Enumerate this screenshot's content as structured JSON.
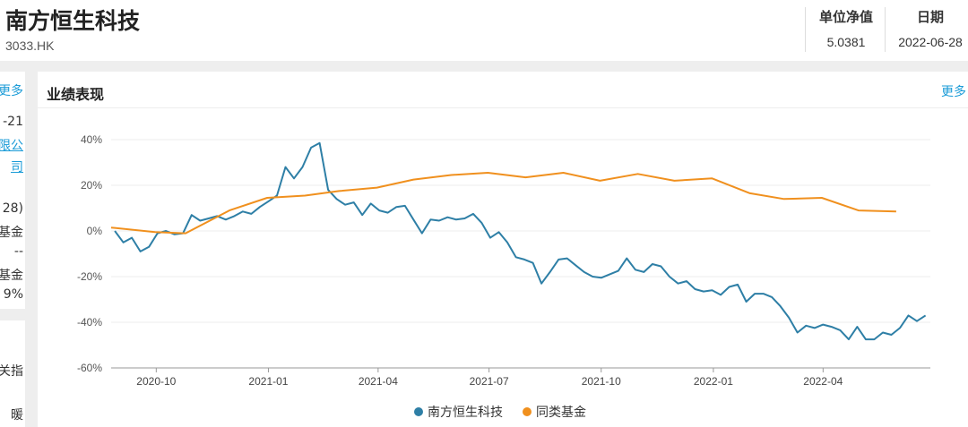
{
  "fund": {
    "name": "南方恒生科技",
    "code": "3033.HK"
  },
  "metrics": [
    {
      "label": "单位净值",
      "value": "5.0381"
    },
    {
      "label": "日期",
      "value": "2022-06-28"
    }
  ],
  "left_panel": {
    "more": "更多",
    "lines": [
      "-21",
      "限公",
      "司",
      "28)",
      "基金",
      "--",
      "基金",
      "9%"
    ],
    "lines2": [
      "关指",
      "暖"
    ]
  },
  "panel": {
    "title": "业绩表现",
    "more": "更多"
  },
  "colors": {
    "series1": "#2e7fa6",
    "series2": "#f0901e",
    "link": "#1a9bd7"
  },
  "chart_data": {
    "type": "line",
    "title": "",
    "xlabel": "",
    "ylabel": "",
    "ylim": [
      -60,
      40
    ],
    "xlim": [
      "2020-08-25",
      "2022-06-28"
    ],
    "yticks": [
      "40%",
      "20%",
      "0%",
      "-20%",
      "-40%",
      "-60%"
    ],
    "yticks_values": [
      40,
      20,
      0,
      -20,
      -40,
      -60
    ],
    "xticks": [
      "2020-10",
      "2021-01",
      "2021-04",
      "2021-07",
      "2021-10",
      "2022-01",
      "2022-04"
    ],
    "xticks_dates": [
      "2020-10-01",
      "2021-01-01",
      "2021-04-01",
      "2021-07-01",
      "2021-10-01",
      "2022-01-01",
      "2022-04-01"
    ],
    "grid": true,
    "legend": "bottom",
    "series": [
      {
        "name": "南方恒生科技",
        "points": [
          [
            "2020-08-28",
            0
          ],
          [
            "2020-09-04",
            -5
          ],
          [
            "2020-09-11",
            -3
          ],
          [
            "2020-09-18",
            -9
          ],
          [
            "2020-09-25",
            -7
          ],
          [
            "2020-10-02",
            -1
          ],
          [
            "2020-10-09",
            0
          ],
          [
            "2020-10-16",
            -1.5
          ],
          [
            "2020-10-23",
            -1
          ],
          [
            "2020-10-30",
            7
          ],
          [
            "2020-11-06",
            4.5
          ],
          [
            "2020-11-13",
            5.5
          ],
          [
            "2020-11-20",
            6.5
          ],
          [
            "2020-11-27",
            5
          ],
          [
            "2020-12-04",
            6.5
          ],
          [
            "2020-12-11",
            8.5
          ],
          [
            "2020-12-18",
            7.5
          ],
          [
            "2020-12-25",
            10.5
          ],
          [
            "2021-01-01",
            13
          ],
          [
            "2021-01-08",
            15.5
          ],
          [
            "2021-01-15",
            28
          ],
          [
            "2021-01-22",
            23
          ],
          [
            "2021-01-29",
            28
          ],
          [
            "2021-02-05",
            36.5
          ],
          [
            "2021-02-12",
            38.5
          ],
          [
            "2021-02-19",
            18
          ],
          [
            "2021-02-26",
            14
          ],
          [
            "2021-03-05",
            11.5
          ],
          [
            "2021-03-12",
            12.5
          ],
          [
            "2021-03-19",
            7
          ],
          [
            "2021-03-26",
            12
          ],
          [
            "2021-04-02",
            9
          ],
          [
            "2021-04-09",
            8
          ],
          [
            "2021-04-16",
            10.5
          ],
          [
            "2021-04-23",
            11
          ],
          [
            "2021-04-30",
            5
          ],
          [
            "2021-05-07",
            -1
          ],
          [
            "2021-05-14",
            5
          ],
          [
            "2021-05-21",
            4.5
          ],
          [
            "2021-05-28",
            6
          ],
          [
            "2021-06-04",
            5
          ],
          [
            "2021-06-11",
            5.5
          ],
          [
            "2021-06-18",
            7.5
          ],
          [
            "2021-06-25",
            3.5
          ],
          [
            "2021-07-02",
            -3
          ],
          [
            "2021-07-09",
            -0.5
          ],
          [
            "2021-07-16",
            -5
          ],
          [
            "2021-07-23",
            -11.5
          ],
          [
            "2021-07-30",
            -12.5
          ],
          [
            "2021-08-06",
            -14
          ],
          [
            "2021-08-13",
            -23
          ],
          [
            "2021-08-20",
            -18
          ],
          [
            "2021-08-27",
            -12.5
          ],
          [
            "2021-09-03",
            -12
          ],
          [
            "2021-09-10",
            -15
          ],
          [
            "2021-09-17",
            -18
          ],
          [
            "2021-09-24",
            -20
          ],
          [
            "2021-10-01",
            -20.5
          ],
          [
            "2021-10-08",
            -19
          ],
          [
            "2021-10-15",
            -17.5
          ],
          [
            "2021-10-22",
            -12
          ],
          [
            "2021-10-29",
            -17
          ],
          [
            "2021-11-05",
            -18
          ],
          [
            "2021-11-12",
            -14.5
          ],
          [
            "2021-11-19",
            -15.5
          ],
          [
            "2021-11-26",
            -20
          ],
          [
            "2021-12-03",
            -23
          ],
          [
            "2021-12-10",
            -22
          ],
          [
            "2021-12-17",
            -25.5
          ],
          [
            "2021-12-24",
            -26.5
          ],
          [
            "2021-12-31",
            -26
          ],
          [
            "2022-01-07",
            -28
          ],
          [
            "2022-01-14",
            -24.5
          ],
          [
            "2022-01-21",
            -23.5
          ],
          [
            "2022-01-28",
            -31
          ],
          [
            "2022-02-04",
            -27.5
          ],
          [
            "2022-02-11",
            -27.5
          ],
          [
            "2022-02-18",
            -29
          ],
          [
            "2022-02-25",
            -33
          ],
          [
            "2022-03-04",
            -38
          ],
          [
            "2022-03-11",
            -44.5
          ],
          [
            "2022-03-18",
            -41.5
          ],
          [
            "2022-03-25",
            -42.5
          ],
          [
            "2022-04-01",
            -41
          ],
          [
            "2022-04-08",
            -42
          ],
          [
            "2022-04-15",
            -43.5
          ],
          [
            "2022-04-22",
            -47.5
          ],
          [
            "2022-04-29",
            -42
          ],
          [
            "2022-05-06",
            -47.5
          ],
          [
            "2022-05-13",
            -47.5
          ],
          [
            "2022-05-20",
            -44.5
          ],
          [
            "2022-05-27",
            -45.5
          ],
          [
            "2022-06-03",
            -42.5
          ],
          [
            "2022-06-10",
            -37
          ],
          [
            "2022-06-17",
            -39.5
          ],
          [
            "2022-06-24",
            -37
          ]
        ]
      },
      {
        "name": "同类基金",
        "points": [
          [
            "2020-08-25",
            1.5
          ],
          [
            "2020-09-30",
            -0.5
          ],
          [
            "2020-10-25",
            -1
          ],
          [
            "2020-11-30",
            9
          ],
          [
            "2020-12-31",
            14.5
          ],
          [
            "2021-01-31",
            15.5
          ],
          [
            "2021-02-28",
            17.5
          ],
          [
            "2021-03-31",
            19
          ],
          [
            "2021-04-30",
            22.5
          ],
          [
            "2021-05-31",
            24.5
          ],
          [
            "2021-06-30",
            25.5
          ],
          [
            "2021-07-31",
            23.5
          ],
          [
            "2021-08-31",
            25.5
          ],
          [
            "2021-09-30",
            22
          ],
          [
            "2021-10-31",
            25
          ],
          [
            "2021-11-30",
            22
          ],
          [
            "2021-12-31",
            23
          ],
          [
            "2022-01-31",
            16.5
          ],
          [
            "2022-02-28",
            14
          ],
          [
            "2022-03-31",
            14.5
          ],
          [
            "2022-04-30",
            9
          ],
          [
            "2022-05-31",
            8.5
          ]
        ]
      }
    ]
  }
}
